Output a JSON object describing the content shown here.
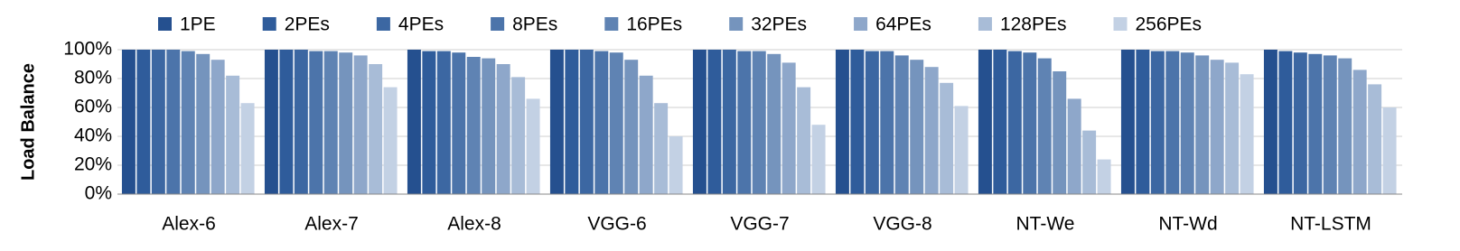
{
  "chart_data": {
    "type": "bar",
    "y_label": "Load Balance",
    "categories": [
      "Alex-6",
      "Alex-7",
      "Alex-8",
      "VGG-6",
      "VGG-7",
      "VGG-8",
      "NT-We",
      "NT-Wd",
      "NT-LSTM"
    ],
    "series": [
      {
        "name": "1PE",
        "color": "#25508f",
        "values": [
          100,
          100,
          100,
          100,
          100,
          100,
          100,
          100,
          100
        ]
      },
      {
        "name": "2PEs",
        "color": "#2f5c9b",
        "values": [
          100,
          100,
          99,
          100,
          100,
          100,
          100,
          100,
          99
        ]
      },
      {
        "name": "4PEs",
        "color": "#3c67a2",
        "values": [
          100,
          100,
          99,
          100,
          100,
          99,
          99,
          99,
          98
        ]
      },
      {
        "name": "8PEs",
        "color": "#4c74aa",
        "values": [
          100,
          99,
          98,
          99,
          99,
          99,
          98,
          99,
          97
        ]
      },
      {
        "name": "16PEs",
        "color": "#5f83b3",
        "values": [
          99,
          99,
          95,
          98,
          99,
          96,
          94,
          98,
          96
        ]
      },
      {
        "name": "32PEs",
        "color": "#7594bd",
        "values": [
          97,
          98,
          94,
          93,
          97,
          93,
          85,
          96,
          94
        ]
      },
      {
        "name": "64PEs",
        "color": "#8ea7ca",
        "values": [
          93,
          96,
          90,
          82,
          91,
          88,
          66,
          93,
          86
        ]
      },
      {
        "name": "128PEs",
        "color": "#a8bcd7",
        "values": [
          82,
          90,
          81,
          63,
          74,
          77,
          44,
          91,
          76
        ]
      },
      {
        "name": "256PEs",
        "color": "#c3d1e4",
        "values": [
          63,
          74,
          66,
          40,
          48,
          61,
          24,
          83,
          60
        ]
      }
    ],
    "ylim": [
      0,
      100
    ],
    "yticks": [
      {
        "value": 0,
        "label": "0%"
      },
      {
        "value": 20,
        "label": "20%"
      },
      {
        "value": 40,
        "label": "40%"
      },
      {
        "value": 60,
        "label": "60%"
      },
      {
        "value": 80,
        "label": "80%"
      },
      {
        "value": 100,
        "label": "100%"
      }
    ],
    "grid": true
  }
}
